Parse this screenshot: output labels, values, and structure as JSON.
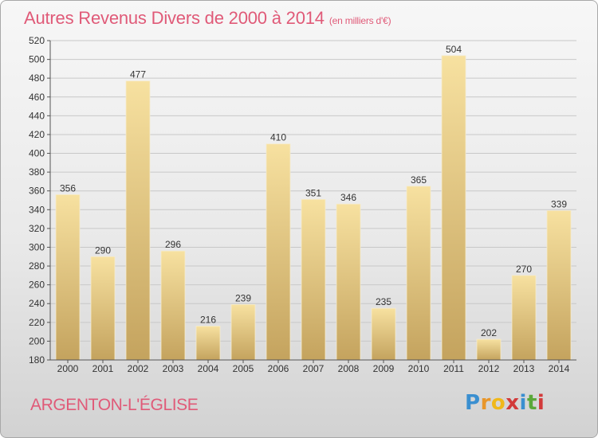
{
  "header": {
    "title": "Autres Revenus Divers de 2000 à 2014",
    "unit": "(en milliers d'€)"
  },
  "footer": {
    "commune": "ARGENTON-L'ÉGLISE",
    "logo_text": "Proxiti",
    "logo_colors": [
      "#3a8fd0",
      "#e8962a",
      "#f0b81a",
      "#d23a3a",
      "#3a8fd0",
      "#5aa83a",
      "#d23a3a"
    ]
  },
  "colors": {
    "bar_light": "#f7e1a0",
    "bar_dark": "#c4a35e",
    "title": "#e05a78",
    "grid": "#c8c8c8"
  },
  "chart_data": {
    "type": "bar",
    "categories": [
      "2000",
      "2001",
      "2002",
      "2003",
      "2004",
      "2005",
      "2006",
      "2007",
      "2008",
      "2009",
      "2010",
      "2011",
      "2012",
      "2013",
      "2014"
    ],
    "values": [
      356,
      290,
      477,
      296,
      216,
      239,
      410,
      351,
      346,
      235,
      365,
      504,
      202,
      270,
      339
    ],
    "ylim": [
      180,
      520
    ],
    "yticks": [
      180,
      200,
      220,
      240,
      260,
      280,
      300,
      320,
      340,
      360,
      380,
      400,
      420,
      440,
      460,
      480,
      500,
      520
    ],
    "grid": true,
    "data_labels": true
  }
}
